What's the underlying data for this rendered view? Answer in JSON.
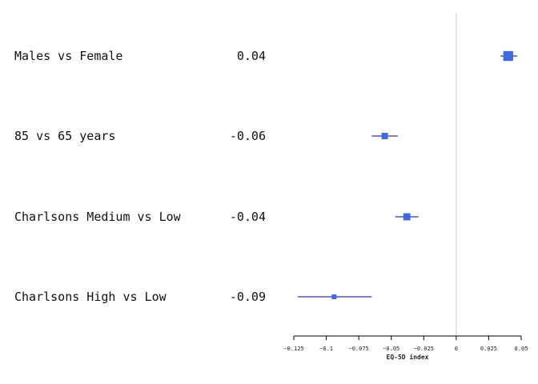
{
  "chart_data": {
    "type": "forest",
    "xlabel": "EQ-5D index",
    "xlim": [
      -0.125,
      0.05
    ],
    "xticks": [
      "-0.125",
      "-0.1",
      "-0.075",
      "-0.05",
      "-0.025",
      "0",
      "0.025",
      "0.05"
    ],
    "reference_line": 0,
    "marker_color": "#4169E1",
    "ci_color": "#00008B",
    "rows": [
      {
        "label": "Males vs Female",
        "estimate_text": "0.04",
        "value": 0.04,
        "ci": [
          0.034,
          0.047
        ]
      },
      {
        "label": "85 vs 65 years",
        "estimate_text": "-0.06",
        "value": -0.055,
        "ci": [
          -0.065,
          -0.045
        ]
      },
      {
        "label": "Charlsons Medium vs Low",
        "estimate_text": "-0.04",
        "value": -0.038,
        "ci": [
          -0.047,
          -0.029
        ]
      },
      {
        "label": "Charlsons High vs Low",
        "estimate_text": "-0.09",
        "value": -0.094,
        "ci": [
          -0.122,
          -0.065
        ]
      }
    ]
  }
}
